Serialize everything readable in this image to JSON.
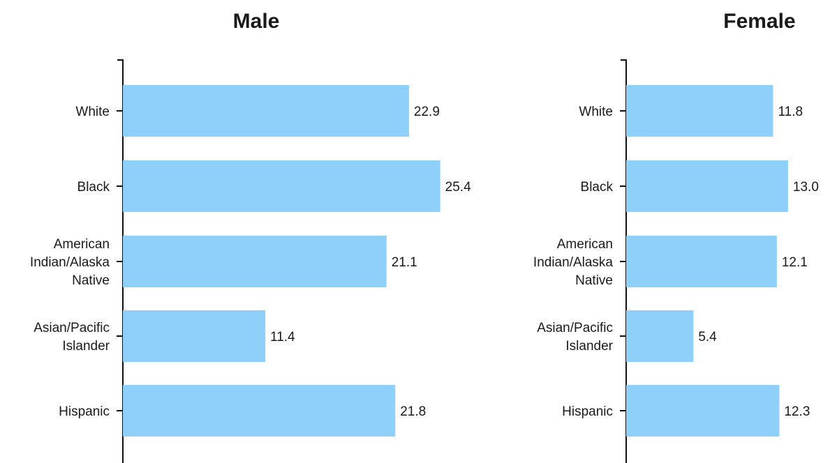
{
  "chart_data": [
    {
      "type": "bar",
      "orientation": "horizontal",
      "title": "Male",
      "categories": [
        "White",
        "Black",
        "American Indian/Alaska Native",
        "Asian/Pacific Islander",
        "Hispanic"
      ],
      "values": [
        22.9,
        25.4,
        21.1,
        11.4,
        21.8
      ],
      "value_labels": [
        "22.9",
        "25.4",
        "21.1",
        "11.4",
        "21.8"
      ],
      "xlim": [
        0,
        30
      ],
      "grid": false,
      "bar_color": "#8fd0fb"
    },
    {
      "type": "bar",
      "orientation": "horizontal",
      "title": "Female",
      "categories": [
        "White",
        "Black",
        "American Indian/Alaska Native",
        "Asian/Pacific Islander",
        "Hispanic"
      ],
      "values": [
        11.8,
        13.0,
        12.1,
        5.4,
        12.3
      ],
      "value_labels": [
        "11.8",
        "13.0",
        "12.1",
        "5.4",
        "12.3"
      ],
      "xlim": [
        0,
        16
      ],
      "grid": false,
      "bar_color": "#8fd0fb"
    }
  ],
  "category_label_lines": [
    [
      "White"
    ],
    [
      "Black"
    ],
    [
      "American",
      "Indian/Alaska",
      "Native"
    ],
    [
      "Asian/Pacific",
      "Islander"
    ],
    [
      "Hispanic"
    ]
  ]
}
